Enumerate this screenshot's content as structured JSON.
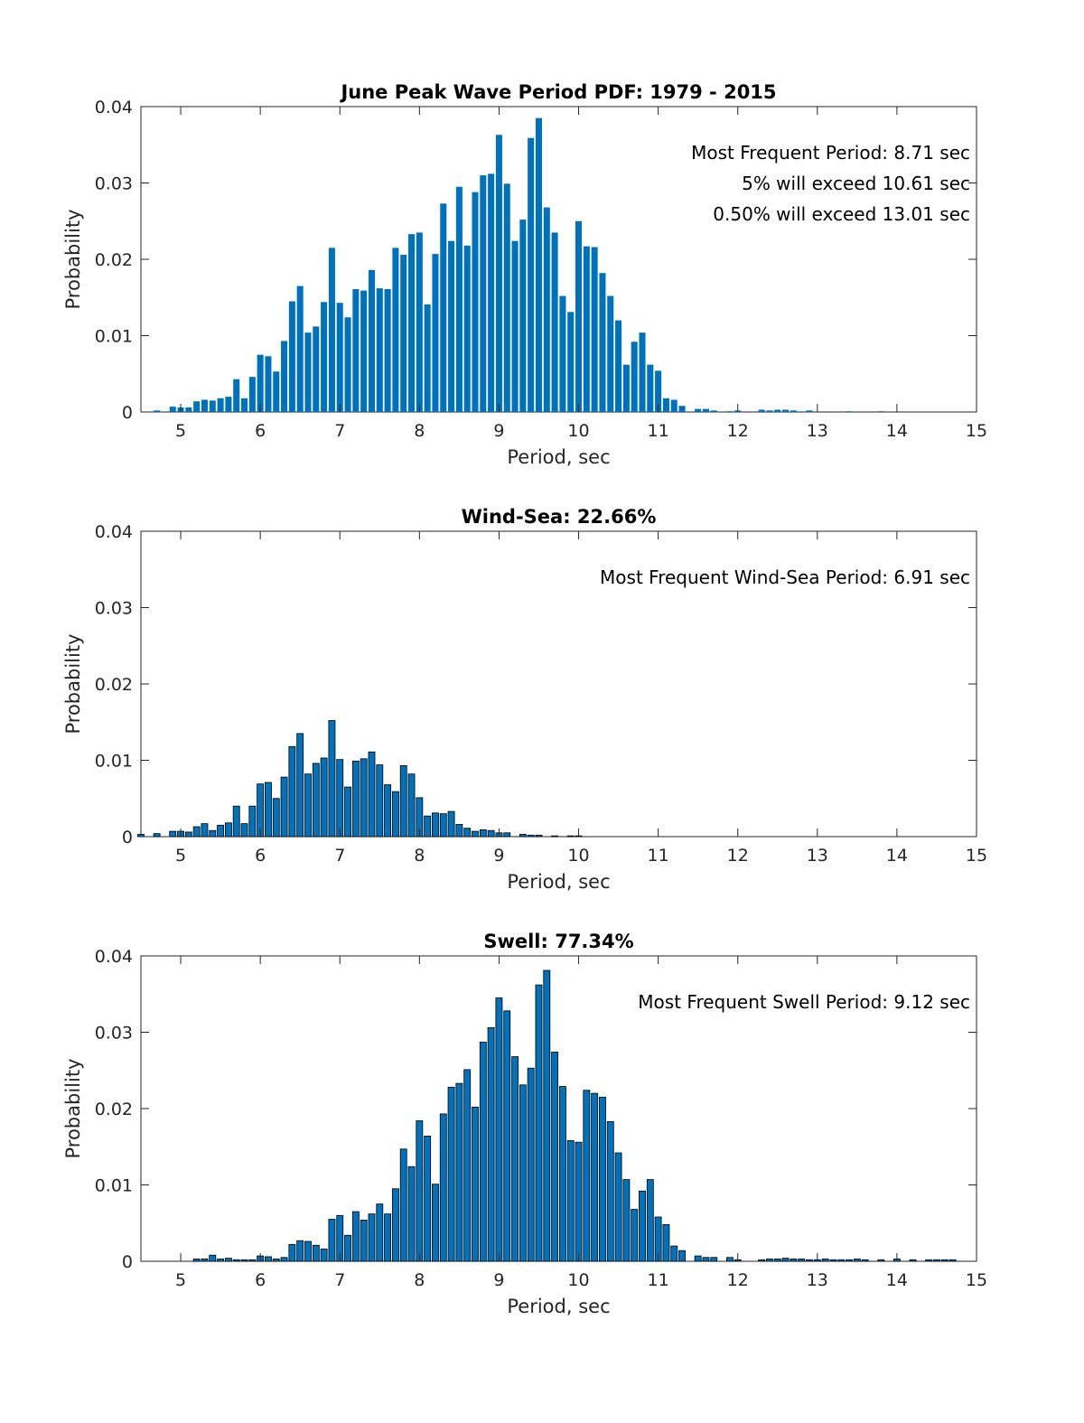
{
  "chart_data": [
    {
      "type": "bar",
      "title": "June Peak Wave Period PDF: 1979 - 2015",
      "xlabel": "Period, sec",
      "ylabel": "Probability",
      "xlim": [
        4.5,
        15
      ],
      "ylim": [
        0,
        0.04
      ],
      "xticks": [
        5,
        6,
        7,
        8,
        9,
        10,
        11,
        12,
        13,
        14,
        15
      ],
      "yticks": [
        0,
        0.01,
        0.02,
        0.03,
        0.04
      ],
      "ytick_labels": [
        "0",
        "0.01",
        "0.02",
        "0.03",
        "0.04"
      ],
      "bar_style": "flat",
      "annotations": [
        "Most Frequent Period: 8.71 sec",
        "5% will exceed 10.61 sec",
        "0.50% will exceed 13.01 sec"
      ],
      "x": [
        4.7,
        4.9,
        5.0,
        5.1,
        5.2,
        5.3,
        5.4,
        5.5,
        5.6,
        5.7,
        5.8,
        5.9,
        6.0,
        6.1,
        6.2,
        6.3,
        6.4,
        6.5,
        6.6,
        6.7,
        6.8,
        6.9,
        7.0,
        7.1,
        7.2,
        7.3,
        7.4,
        7.5,
        7.6,
        7.7,
        7.8,
        7.9,
        8.0,
        8.1,
        8.2,
        8.3,
        8.4,
        8.5,
        8.6,
        8.7,
        8.8,
        8.9,
        9.0,
        9.1,
        9.2,
        9.3,
        9.4,
        9.5,
        9.6,
        9.7,
        9.8,
        9.9,
        10.0,
        10.1,
        10.2,
        10.3,
        10.4,
        10.5,
        10.6,
        10.7,
        10.8,
        10.9,
        11.0,
        11.1,
        11.2,
        11.3,
        11.5,
        11.6,
        11.7,
        11.9,
        12.0,
        12.3,
        12.4,
        12.5,
        12.6,
        12.7,
        12.9,
        13.4,
        13.8
      ],
      "values": [
        0.0002,
        0.0007,
        0.0006,
        0.0006,
        0.0014,
        0.0016,
        0.0015,
        0.0018,
        0.002,
        0.0043,
        0.0018,
        0.0046,
        0.0075,
        0.0073,
        0.0053,
        0.0093,
        0.0145,
        0.0165,
        0.0104,
        0.0112,
        0.0144,
        0.0215,
        0.0143,
        0.0124,
        0.0161,
        0.0159,
        0.0186,
        0.0162,
        0.0161,
        0.0215,
        0.0206,
        0.0233,
        0.0235,
        0.0141,
        0.0207,
        0.0273,
        0.0224,
        0.0295,
        0.0218,
        0.0288,
        0.031,
        0.0312,
        0.0363,
        0.0299,
        0.0224,
        0.0252,
        0.0359,
        0.0385,
        0.0268,
        0.0235,
        0.0152,
        0.0131,
        0.025,
        0.0217,
        0.0216,
        0.0182,
        0.0152,
        0.012,
        0.0062,
        0.0092,
        0.0104,
        0.0062,
        0.0054,
        0.0018,
        0.0016,
        0.0008,
        0.0004,
        0.0004,
        0.0002,
        0.0001,
        0.0002,
        0.0003,
        0.0002,
        0.0003,
        0.0003,
        0.0002,
        0.0002,
        0.0001,
        0.0001
      ]
    },
    {
      "type": "bar",
      "title": "Wind-Sea: 22.66%",
      "xlabel": "Period, sec",
      "ylabel": "Probability",
      "xlim": [
        4.5,
        15
      ],
      "ylim": [
        0,
        0.04
      ],
      "xticks": [
        5,
        6,
        7,
        8,
        9,
        10,
        11,
        12,
        13,
        14,
        15
      ],
      "yticks": [
        0,
        0.01,
        0.02,
        0.03,
        0.04
      ],
      "ytick_labels": [
        "0",
        "0.01",
        "0.02",
        "0.03",
        "0.04"
      ],
      "bar_style": "outlined",
      "annotations": [
        "Most Frequent Wind-Sea Period: 6.91 sec"
      ],
      "x": [
        4.5,
        4.7,
        4.9,
        5.0,
        5.1,
        5.2,
        5.3,
        5.4,
        5.5,
        5.6,
        5.7,
        5.8,
        5.9,
        6.0,
        6.1,
        6.2,
        6.3,
        6.4,
        6.5,
        6.6,
        6.7,
        6.8,
        6.9,
        7.0,
        7.1,
        7.2,
        7.3,
        7.4,
        7.5,
        7.6,
        7.7,
        7.8,
        7.9,
        8.0,
        8.1,
        8.2,
        8.3,
        8.4,
        8.5,
        8.6,
        8.7,
        8.8,
        8.9,
        9.0,
        9.1,
        9.3,
        9.4,
        9.5,
        9.7,
        9.9,
        10.0
      ],
      "values": [
        0.0003,
        0.0004,
        0.0007,
        0.0007,
        0.0006,
        0.0013,
        0.0017,
        0.0008,
        0.0015,
        0.0018,
        0.004,
        0.0017,
        0.004,
        0.0069,
        0.0071,
        0.005,
        0.0078,
        0.0118,
        0.0135,
        0.0082,
        0.0096,
        0.0103,
        0.0152,
        0.0101,
        0.0065,
        0.0099,
        0.0102,
        0.0111,
        0.0094,
        0.0068,
        0.0059,
        0.0093,
        0.0082,
        0.0051,
        0.0027,
        0.0031,
        0.003,
        0.0033,
        0.0016,
        0.0011,
        0.0007,
        0.0009,
        0.0008,
        0.0005,
        0.0005,
        0.0003,
        0.0002,
        0.0002,
        0.0001,
        0.0001,
        0.0001
      ]
    },
    {
      "type": "bar",
      "title": "Swell: 77.34%",
      "xlabel": "Period, sec",
      "ylabel": "Probability",
      "xlim": [
        4.5,
        15
      ],
      "ylim": [
        0,
        0.04
      ],
      "xticks": [
        5,
        6,
        7,
        8,
        9,
        10,
        11,
        12,
        13,
        14,
        15
      ],
      "yticks": [
        0,
        0.01,
        0.02,
        0.03,
        0.04
      ],
      "ytick_labels": [
        "0",
        "0.01",
        "0.02",
        "0.03",
        "0.04"
      ],
      "bar_style": "outlined",
      "annotations": [
        "Most Frequent Swell Period: 9.12 sec"
      ],
      "x": [
        5.2,
        5.3,
        5.4,
        5.5,
        5.6,
        5.7,
        5.8,
        5.9,
        6.0,
        6.1,
        6.2,
        6.3,
        6.4,
        6.5,
        6.6,
        6.7,
        6.8,
        6.9,
        7.0,
        7.1,
        7.2,
        7.3,
        7.4,
        7.5,
        7.6,
        7.7,
        7.8,
        7.9,
        8.0,
        8.1,
        8.2,
        8.3,
        8.4,
        8.5,
        8.6,
        8.7,
        8.8,
        8.9,
        9.0,
        9.1,
        9.2,
        9.3,
        9.4,
        9.5,
        9.6,
        9.7,
        9.8,
        9.9,
        10.0,
        10.1,
        10.2,
        10.3,
        10.4,
        10.5,
        10.6,
        10.7,
        10.8,
        10.9,
        11.0,
        11.1,
        11.2,
        11.3,
        11.5,
        11.6,
        11.7,
        11.9,
        12.0,
        12.3,
        12.4,
        12.5,
        12.6,
        12.7,
        12.8,
        12.9,
        13.0,
        13.1,
        13.2,
        13.3,
        13.4,
        13.5,
        13.6,
        13.8,
        14.0,
        14.2,
        14.4,
        14.5,
        14.6,
        14.7
      ],
      "values": [
        0.0003,
        0.0003,
        0.0008,
        0.0003,
        0.0004,
        0.0002,
        0.0002,
        0.0002,
        0.0007,
        0.0006,
        0.0003,
        0.0005,
        0.0022,
        0.0027,
        0.0026,
        0.0021,
        0.0016,
        0.0055,
        0.006,
        0.0034,
        0.0065,
        0.0054,
        0.0062,
        0.0075,
        0.0062,
        0.0095,
        0.0147,
        0.0124,
        0.0184,
        0.0164,
        0.0101,
        0.0193,
        0.0228,
        0.0233,
        0.0251,
        0.0202,
        0.0287,
        0.0306,
        0.0345,
        0.0328,
        0.0268,
        0.0231,
        0.0253,
        0.0362,
        0.0381,
        0.0274,
        0.0229,
        0.0158,
        0.0156,
        0.0224,
        0.022,
        0.0215,
        0.0183,
        0.0142,
        0.0107,
        0.0068,
        0.0092,
        0.0107,
        0.0058,
        0.0048,
        0.002,
        0.0014,
        0.0007,
        0.0005,
        0.0005,
        0.0005,
        0.0002,
        0.0002,
        0.0003,
        0.0003,
        0.0004,
        0.0003,
        0.0003,
        0.0002,
        0.0002,
        0.0003,
        0.0002,
        0.0002,
        0.0002,
        0.0003,
        0.0002,
        0.0002,
        0.0003,
        0.0002,
        0.0002,
        0.0002,
        0.0002,
        0.0002
      ]
    }
  ]
}
